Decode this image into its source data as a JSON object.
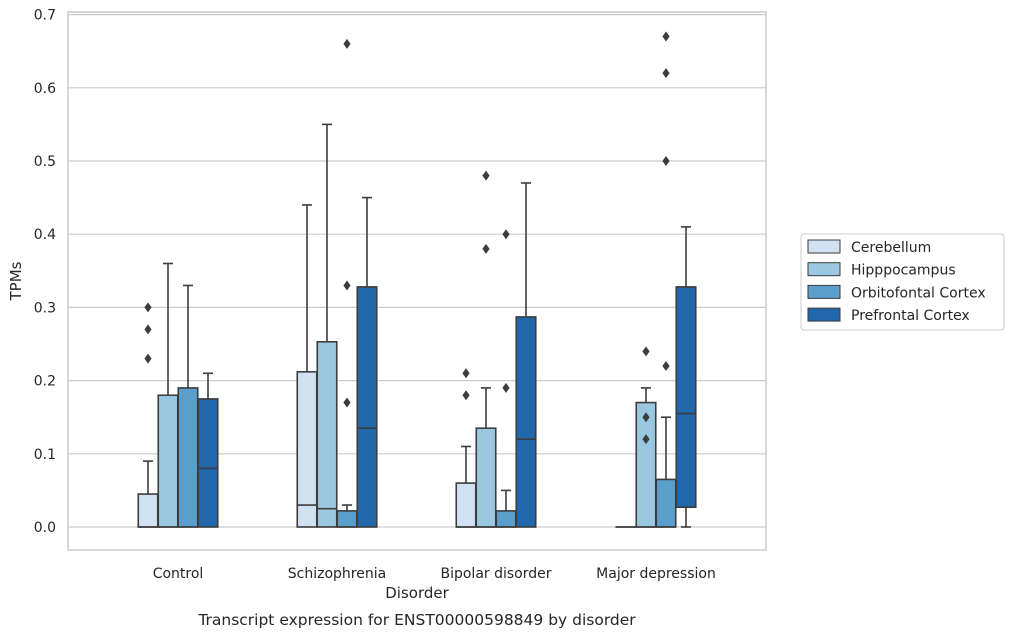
{
  "chart_data": {
    "type": "box",
    "caption": "Transcript expression for ENST00000598849 by disorder",
    "xlabel": "Disorder",
    "ylabel": "TPMs",
    "ylim": [
      -0.032,
      0.705
    ],
    "yticks": [
      0.0,
      0.1,
      0.2,
      0.3,
      0.4,
      0.5,
      0.6,
      0.7
    ],
    "grid": true,
    "legend_position": "right",
    "categories": [
      "Control",
      "Schizophrenia",
      "Bipolar disorder",
      "Major depression"
    ],
    "series": [
      {
        "name": "Cerebellum",
        "color": "#d0e1f2",
        "boxes": [
          {
            "low": 0.0,
            "q1": 0.0,
            "median": 0.0,
            "q3": 0.045,
            "high": 0.09,
            "outliers": [
              0.23,
              0.27,
              0.3
            ]
          },
          {
            "low": 0.0,
            "q1": 0.0,
            "median": 0.03,
            "q3": 0.212,
            "high": 0.44,
            "outliers": []
          },
          {
            "low": 0.0,
            "q1": 0.0,
            "median": 0.0,
            "q3": 0.06,
            "high": 0.11,
            "outliers": [
              0.18,
              0.21
            ]
          },
          {
            "low": 0.0,
            "q1": 0.0,
            "median": 0.0,
            "q3": 0.0,
            "high": 0.0,
            "outliers": []
          }
        ]
      },
      {
        "name": "Hipppocampus",
        "color": "#9ac8e0",
        "boxes": [
          {
            "low": 0.0,
            "q1": 0.0,
            "median": 0.0,
            "q3": 0.18,
            "high": 0.36,
            "outliers": []
          },
          {
            "low": 0.0,
            "q1": 0.0,
            "median": 0.025,
            "q3": 0.253,
            "high": 0.55,
            "outliers": []
          },
          {
            "low": 0.0,
            "q1": 0.0,
            "median": 0.0,
            "q3": 0.135,
            "high": 0.19,
            "outliers": [
              0.38,
              0.48
            ]
          },
          {
            "low": 0.0,
            "q1": 0.0,
            "median": 0.0,
            "q3": 0.17,
            "high": 0.19,
            "outliers": [
              0.12,
              0.15,
              0.24
            ]
          }
        ]
      },
      {
        "name": "Orbitofontal Cortex",
        "color": "#5a9ecc",
        "boxes": [
          {
            "low": 0.0,
            "q1": 0.0,
            "median": 0.0,
            "q3": 0.19,
            "high": 0.33,
            "outliers": []
          },
          {
            "low": 0.0,
            "q1": 0.0,
            "median": 0.0,
            "q3": 0.022,
            "high": 0.03,
            "outliers": [
              0.17,
              0.33,
              0.66
            ]
          },
          {
            "low": 0.0,
            "q1": 0.0,
            "median": 0.0,
            "q3": 0.022,
            "high": 0.05,
            "outliers": [
              0.19,
              0.4
            ]
          },
          {
            "low": 0.0,
            "q1": 0.0,
            "median": 0.0,
            "q3": 0.065,
            "high": 0.15,
            "outliers": [
              0.22,
              0.5,
              0.62,
              0.67
            ]
          }
        ]
      },
      {
        "name": "Prefrontal Cortex",
        "color": "#2167ab",
        "boxes": [
          {
            "low": 0.0,
            "q1": 0.0,
            "median": 0.08,
            "q3": 0.175,
            "high": 0.21,
            "outliers": []
          },
          {
            "low": 0.0,
            "q1": 0.0,
            "median": 0.135,
            "q3": 0.328,
            "high": 0.45,
            "outliers": []
          },
          {
            "low": 0.0,
            "q1": 0.0,
            "median": 0.12,
            "q3": 0.287,
            "high": 0.47,
            "outliers": []
          },
          {
            "low": 0.0,
            "q1": 0.027,
            "median": 0.155,
            "q3": 0.328,
            "high": 0.41,
            "outliers": []
          }
        ]
      }
    ]
  }
}
